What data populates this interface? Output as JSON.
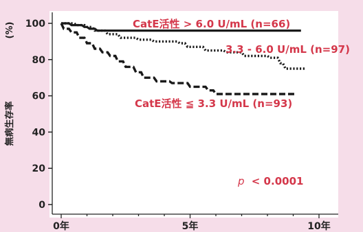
{
  "chart_data": {
    "type": "line",
    "title": "",
    "xlabel": "",
    "ylabel": "無病生存率",
    "yunit": "(%)",
    "xlim": [
      0,
      10.5
    ],
    "ylim": [
      -4,
      104
    ],
    "x_ticks": [
      {
        "value": 0,
        "label": "0年"
      },
      {
        "value": 5,
        "label": "5年"
      },
      {
        "value": 10,
        "label": "10年"
      }
    ],
    "y_ticks": [
      {
        "value": 0,
        "label": "0"
      },
      {
        "value": 20,
        "label": "20"
      },
      {
        "value": 40,
        "label": "40"
      },
      {
        "value": 60,
        "label": "60"
      },
      {
        "value": 80,
        "label": "80"
      },
      {
        "value": 100,
        "label": "100"
      }
    ],
    "grid": false,
    "series": [
      {
        "name": "CatE活性 > 6.0 U/mL (n=66)",
        "color": "#1a1a1a",
        "style": "solid",
        "points": [
          [
            0.0,
            100
          ],
          [
            0.3,
            100
          ],
          [
            0.4,
            99
          ],
          [
            0.8,
            99
          ],
          [
            0.9,
            98
          ],
          [
            1.0,
            98
          ],
          [
            1.1,
            97
          ],
          [
            1.3,
            97
          ],
          [
            1.4,
            96
          ],
          [
            9.3,
            96
          ]
        ]
      },
      {
        "name": "3.3 - 6.0 U/mL (n=97)",
        "color": "#1a1a1a",
        "style": "dotted",
        "points": [
          [
            0.0,
            100
          ],
          [
            0.5,
            100
          ],
          [
            0.6,
            99
          ],
          [
            0.9,
            99
          ],
          [
            1.0,
            98
          ],
          [
            1.2,
            98
          ],
          [
            1.3,
            96
          ],
          [
            1.7,
            96
          ],
          [
            1.8,
            94
          ],
          [
            2.2,
            94
          ],
          [
            2.3,
            92
          ],
          [
            2.9,
            92
          ],
          [
            3.0,
            91
          ],
          [
            3.5,
            91
          ],
          [
            3.6,
            90
          ],
          [
            4.5,
            90
          ],
          [
            4.6,
            89
          ],
          [
            4.8,
            89
          ],
          [
            4.9,
            87
          ],
          [
            5.5,
            87
          ],
          [
            5.6,
            85
          ],
          [
            6.3,
            85
          ],
          [
            6.4,
            84
          ],
          [
            7.0,
            84
          ],
          [
            7.1,
            82
          ],
          [
            8.0,
            82
          ],
          [
            8.1,
            81
          ],
          [
            8.4,
            81
          ],
          [
            8.5,
            78
          ],
          [
            8.6,
            78
          ],
          [
            8.7,
            75
          ],
          [
            9.5,
            75
          ]
        ]
      },
      {
        "name": "CatE活性 ≦ 3.3 U/mL (n=93)",
        "color": "#1a1a1a",
        "style": "dashed",
        "points": [
          [
            0.0,
            100
          ],
          [
            0.1,
            97
          ],
          [
            0.3,
            97
          ],
          [
            0.4,
            95
          ],
          [
            0.6,
            95
          ],
          [
            0.7,
            92
          ],
          [
            0.9,
            92
          ],
          [
            1.0,
            89
          ],
          [
            1.2,
            89
          ],
          [
            1.3,
            86
          ],
          [
            1.5,
            86
          ],
          [
            1.6,
            84
          ],
          [
            1.8,
            84
          ],
          [
            1.9,
            82
          ],
          [
            2.1,
            82
          ],
          [
            2.2,
            79
          ],
          [
            2.4,
            79
          ],
          [
            2.5,
            76
          ],
          [
            2.8,
            76
          ],
          [
            2.9,
            73
          ],
          [
            3.1,
            73
          ],
          [
            3.2,
            70
          ],
          [
            3.6,
            70
          ],
          [
            3.7,
            68
          ],
          [
            4.2,
            68
          ],
          [
            4.3,
            67
          ],
          [
            4.9,
            67
          ],
          [
            5.0,
            65
          ],
          [
            5.6,
            65
          ],
          [
            5.7,
            63
          ],
          [
            5.9,
            63
          ],
          [
            6.0,
            61
          ],
          [
            9.1,
            61
          ]
        ]
      }
    ],
    "annotations": [
      {
        "text": "CatE活性 > 6.0 U/mL (n=66)",
        "color": "#d4374a"
      },
      {
        "text": "3.3 - 6.0 U/mL (n=97)",
        "color": "#d4374a"
      },
      {
        "text": "CatE活性 ≦ 3.3 U/mL (n=93)",
        "color": "#d4374a"
      },
      {
        "text_prefix": "p",
        "text": "< 0.0001",
        "color": "#d4374a"
      }
    ]
  }
}
